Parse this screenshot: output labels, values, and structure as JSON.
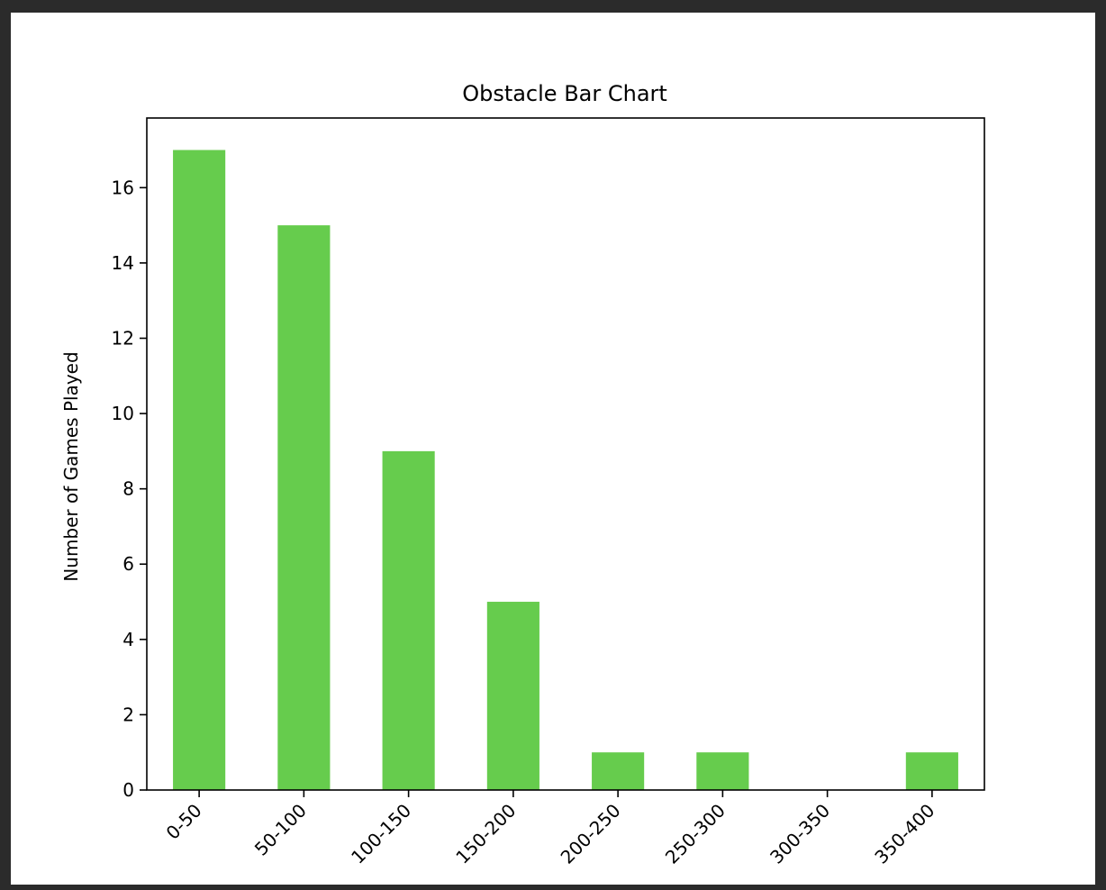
{
  "chart_data": {
    "type": "bar",
    "title": "Obstacle Bar Chart",
    "xlabel": "",
    "ylabel": "Number of Games Played",
    "categories": [
      "0-50",
      "50-100",
      "100-150",
      "150-200",
      "200-250",
      "250-300",
      "300-350",
      "350-400"
    ],
    "values": [
      17,
      15,
      9,
      5,
      1,
      1,
      0,
      1
    ],
    "ylim": [
      0,
      17.85
    ],
    "yticks": [
      0,
      2,
      4,
      6,
      8,
      10,
      12,
      14,
      16
    ],
    "bar_color": "#66cc4d",
    "grid": false,
    "xtick_rotation": "45-degree"
  }
}
